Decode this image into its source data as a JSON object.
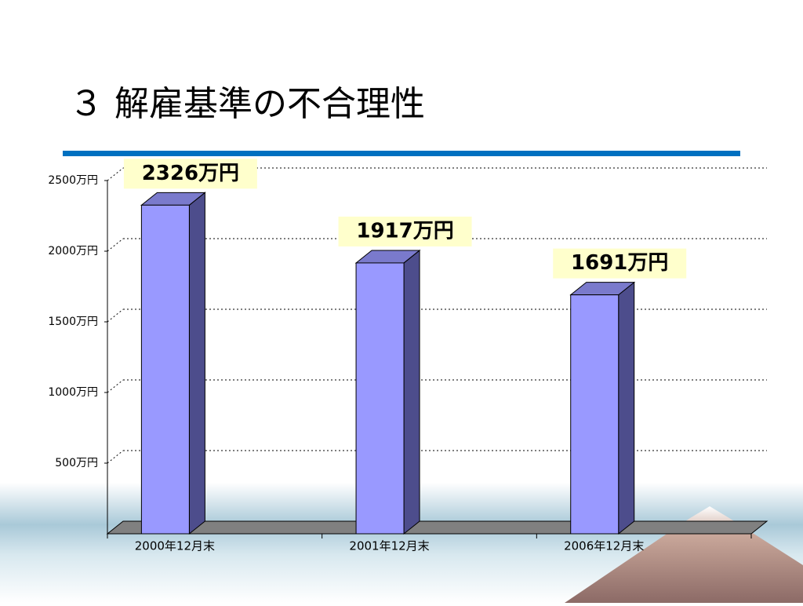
{
  "chart_data": {
    "type": "bar3d",
    "title": "３ 解雇基準の不合理性",
    "categories": [
      "2000年12月末",
      "2001年12月末",
      "2006年12月末"
    ],
    "values": [
      2326,
      1917,
      1691
    ],
    "value_labels": [
      "2326万円",
      "1917万円",
      "1691万円"
    ],
    "color": "#9999ff",
    "ylim": [
      0,
      2500
    ],
    "yticks": [
      {
        "value": 500,
        "label": "500万円"
      },
      {
        "value": 1000,
        "label": "1000万円"
      },
      {
        "value": 1500,
        "label": "1500万円"
      },
      {
        "value": 2000,
        "label": "2000万円"
      },
      {
        "value": 2500,
        "label": "2500万円"
      }
    ],
    "grid": true
  }
}
